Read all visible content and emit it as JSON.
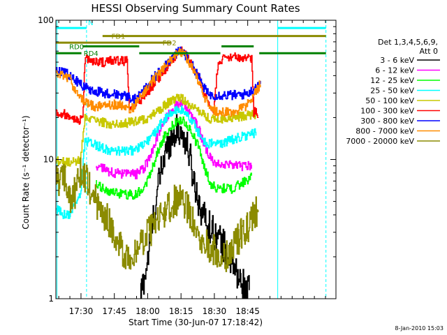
{
  "chart_data": {
    "type": "line",
    "title": "HESSI Observing Summary Count Rates",
    "xlabel": "Start Time (30-Jun-07 17:18:42)",
    "ylabel": "Count Rate (s⁻¹ detector⁻¹)",
    "ylog": true,
    "ylim": [
      1,
      100
    ],
    "xlim_min_since_start": [
      0,
      126
    ],
    "x_ticks": [
      {
        "label": "17:30",
        "t": 11.3
      },
      {
        "label": "17:45",
        "t": 26.3
      },
      {
        "label": "18:00",
        "t": 41.3
      },
      {
        "label": "18:15",
        "t": 56.3
      },
      {
        "label": "18:30",
        "t": 71.3
      },
      {
        "label": "18:45",
        "t": 86.3
      }
    ],
    "y_ticks": [
      {
        "label": "1",
        "v": 1
      },
      {
        "label": "10",
        "v": 10
      },
      {
        "label": "100",
        "v": 100
      }
    ],
    "legend_header": [
      "Det 1,3,4,5,6,9,",
      "Att 0"
    ],
    "legend_position": "right",
    "series": [
      {
        "name": "3 - 6 keV",
        "color": "#000000",
        "points": [
          [
            38,
            1.05
          ],
          [
            41,
            1.8
          ],
          [
            44,
            4
          ],
          [
            47,
            8
          ],
          [
            50,
            12.5
          ],
          [
            53,
            15.5
          ],
          [
            55,
            16.5
          ],
          [
            57,
            15
          ],
          [
            60,
            11
          ],
          [
            62,
            7
          ],
          [
            65,
            4.5
          ],
          [
            68,
            3.5
          ],
          [
            71,
            3
          ],
          [
            74,
            2.6
          ],
          [
            76,
            2.3
          ],
          [
            79,
            1.8
          ],
          [
            82,
            1.4
          ],
          [
            85,
            1.2
          ],
          [
            87,
            1.1
          ]
        ]
      },
      {
        "name": "6 - 12 keV",
        "color": "#ff00ff",
        "points": [
          [
            18,
            9
          ],
          [
            21,
            8.6
          ],
          [
            24,
            8.2
          ],
          [
            27,
            8
          ],
          [
            30,
            7.8
          ],
          [
            33,
            7.8
          ],
          [
            36,
            7.8
          ],
          [
            39,
            8.5
          ],
          [
            42,
            10
          ],
          [
            45,
            14
          ],
          [
            48,
            18.5
          ],
          [
            51,
            21.5
          ],
          [
            54,
            24.5
          ],
          [
            56,
            25.5
          ],
          [
            58,
            24
          ],
          [
            61,
            21
          ],
          [
            64,
            17
          ],
          [
            67,
            12
          ],
          [
            70,
            9.8
          ],
          [
            73,
            9.4
          ],
          [
            76,
            9.2
          ],
          [
            79,
            9
          ],
          [
            82,
            9
          ],
          [
            85,
            9
          ],
          [
            88,
            9
          ]
        ]
      },
      {
        "name": "12 - 25 keV",
        "color": "#00ff00",
        "points": [
          [
            18,
            6.5
          ],
          [
            21,
            6.2
          ],
          [
            24,
            5.9
          ],
          [
            27,
            5.7
          ],
          [
            30,
            5.6
          ],
          [
            33,
            5.6
          ],
          [
            36,
            5.6
          ],
          [
            39,
            6.2
          ],
          [
            42,
            7.5
          ],
          [
            45,
            10.5
          ],
          [
            48,
            14
          ],
          [
            51,
            16.5
          ],
          [
            54,
            18.5
          ],
          [
            56,
            19.5
          ],
          [
            58,
            18.5
          ],
          [
            61,
            15.5
          ],
          [
            64,
            12.5
          ],
          [
            67,
            8.5
          ],
          [
            70,
            6.5
          ],
          [
            73,
            6.2
          ],
          [
            76,
            6.2
          ],
          [
            79,
            6.2
          ],
          [
            82,
            6.5
          ],
          [
            85,
            7
          ],
          [
            88,
            7.5
          ]
        ]
      },
      {
        "name": "25 - 50 keV",
        "color": "#00ffff",
        "points": [
          [
            0,
            4.4
          ],
          [
            3,
            4.1
          ],
          [
            5,
            4
          ],
          [
            6,
            4
          ],
          [
            9,
            5
          ],
          [
            11,
            5.6
          ],
          [
            13,
            13.5
          ],
          [
            16,
            13
          ],
          [
            19,
            12.5
          ],
          [
            22,
            12
          ],
          [
            25,
            11.5
          ],
          [
            29,
            11.5
          ],
          [
            33,
            11.5
          ],
          [
            37,
            12
          ],
          [
            40,
            13
          ],
          [
            43,
            14.5
          ],
          [
            46,
            17
          ],
          [
            49,
            19.5
          ],
          [
            52,
            21.5
          ],
          [
            55,
            23
          ],
          [
            57,
            22.5
          ],
          [
            60,
            20
          ],
          [
            63,
            17
          ],
          [
            65,
            14.5
          ],
          [
            68,
            13
          ],
          [
            71,
            13
          ],
          [
            74,
            13
          ],
          [
            77,
            13.5
          ],
          [
            80,
            14
          ],
          [
            83,
            14.5
          ],
          [
            87,
            15
          ],
          [
            90,
            15.5
          ]
        ]
      },
      {
        "name": "50 - 100 keV",
        "color": "#c8c800",
        "points": [
          [
            0,
            10
          ],
          [
            3,
            9.6
          ],
          [
            6,
            9.4
          ],
          [
            9,
            9.6
          ],
          [
            11,
            10
          ],
          [
            13,
            19.5
          ],
          [
            17,
            19
          ],
          [
            21,
            18.5
          ],
          [
            25,
            18
          ],
          [
            29,
            18
          ],
          [
            33,
            18.5
          ],
          [
            37,
            19
          ],
          [
            40,
            19.5
          ],
          [
            43,
            21
          ],
          [
            46,
            22.5
          ],
          [
            49,
            24.5
          ],
          [
            52,
            26.5
          ],
          [
            55,
            28
          ],
          [
            57,
            27
          ],
          [
            60,
            25
          ],
          [
            63,
            23
          ],
          [
            66,
            21
          ],
          [
            69,
            19.5
          ],
          [
            72,
            19.5
          ],
          [
            76,
            19.8
          ],
          [
            80,
            20
          ],
          [
            84,
            20.5
          ],
          [
            88,
            21
          ],
          [
            90,
            21
          ]
        ]
      },
      {
        "name": "100 - 300 keV",
        "color": "#ff0000",
        "points": [
          [
            0,
            22
          ],
          [
            3,
            21.5
          ],
          [
            5,
            21
          ],
          [
            6,
            21
          ],
          [
            8,
            20
          ],
          [
            10,
            19
          ],
          [
            12,
            20
          ],
          [
            13,
            52
          ],
          [
            17,
            51
          ],
          [
            21,
            50
          ],
          [
            25,
            51
          ],
          [
            29,
            51
          ],
          [
            32,
            50.5
          ],
          [
            33,
            23
          ],
          [
            35,
            24
          ],
          [
            37,
            26
          ],
          [
            40,
            29
          ],
          [
            43,
            33
          ],
          [
            46,
            38
          ],
          [
            49,
            44
          ],
          [
            52,
            51
          ],
          [
            55,
            58
          ],
          [
            56,
            60
          ],
          [
            58,
            57
          ],
          [
            61,
            48
          ],
          [
            64,
            39
          ],
          [
            66,
            33
          ],
          [
            68,
            26
          ],
          [
            70,
            23
          ],
          [
            71,
            22.5
          ],
          [
            73,
            52
          ],
          [
            77,
            53
          ],
          [
            81,
            54
          ],
          [
            85,
            54
          ],
          [
            88,
            54
          ],
          [
            89,
            22
          ],
          [
            91,
            21.5
          ]
        ]
      },
      {
        "name": "300 - 800 keV",
        "color": "#0000ff",
        "points": [
          [
            0,
            44
          ],
          [
            3,
            43
          ],
          [
            6,
            40
          ],
          [
            9,
            37
          ],
          [
            12,
            34
          ],
          [
            15,
            32
          ],
          [
            18,
            31
          ],
          [
            21,
            30
          ],
          [
            24,
            30
          ],
          [
            27,
            29.5
          ],
          [
            30,
            29
          ],
          [
            33,
            28
          ],
          [
            35,
            27
          ],
          [
            37,
            28
          ],
          [
            40,
            32
          ],
          [
            43,
            37
          ],
          [
            46,
            42
          ],
          [
            49,
            48
          ],
          [
            52,
            54
          ],
          [
            55,
            59
          ],
          [
            56,
            61
          ],
          [
            58,
            57
          ],
          [
            61,
            48
          ],
          [
            64,
            40
          ],
          [
            66,
            34
          ],
          [
            68,
            30
          ],
          [
            70,
            29
          ],
          [
            73,
            29
          ],
          [
            76,
            29
          ],
          [
            79,
            29
          ],
          [
            82,
            29
          ],
          [
            85,
            29.5
          ],
          [
            88,
            31
          ],
          [
            90,
            34
          ],
          [
            92,
            36
          ]
        ]
      },
      {
        "name": "800 - 7000 keV",
        "color": "#ff8c00",
        "points": [
          [
            0,
            41
          ],
          [
            3,
            40
          ],
          [
            5,
            39
          ],
          [
            6,
            38
          ],
          [
            9,
            31
          ],
          [
            12,
            27
          ],
          [
            15,
            25
          ],
          [
            18,
            24
          ],
          [
            21,
            24
          ],
          [
            24,
            24.5
          ],
          [
            27,
            25
          ],
          [
            30,
            24.5
          ],
          [
            33,
            23
          ],
          [
            35,
            24
          ],
          [
            37,
            27
          ],
          [
            40,
            31
          ],
          [
            43,
            36
          ],
          [
            46,
            41
          ],
          [
            49,
            47
          ],
          [
            52,
            53
          ],
          [
            55,
            58
          ],
          [
            56,
            60
          ],
          [
            58,
            56
          ],
          [
            61,
            46
          ],
          [
            64,
            37
          ],
          [
            66,
            30
          ],
          [
            68,
            25
          ],
          [
            70,
            23
          ],
          [
            73,
            22
          ],
          [
            76,
            22
          ],
          [
            79,
            22
          ],
          [
            82,
            22.5
          ],
          [
            85,
            24
          ],
          [
            88,
            27
          ],
          [
            90,
            31
          ],
          [
            92,
            35
          ]
        ]
      },
      {
        "name": "7000 - 20000 keV",
        "color": "#8b8b00",
        "points": [
          [
            0,
            7
          ],
          [
            4,
            7.5
          ],
          [
            6,
            5
          ],
          [
            9,
            6
          ],
          [
            11,
            8.5
          ],
          [
            14,
            7
          ],
          [
            18,
            5
          ],
          [
            22,
            4
          ],
          [
            26,
            3
          ],
          [
            30,
            2.2
          ],
          [
            34,
            2
          ],
          [
            38,
            2.5
          ],
          [
            42,
            3
          ],
          [
            45,
            3.5
          ],
          [
            48,
            4
          ],
          [
            51,
            4.6
          ],
          [
            54,
            5.1
          ],
          [
            56,
            5.2
          ],
          [
            58,
            4.8
          ],
          [
            61,
            4
          ],
          [
            64,
            3
          ],
          [
            67,
            2.6
          ],
          [
            70,
            2.3
          ],
          [
            73,
            2
          ],
          [
            76,
            1.9
          ],
          [
            79,
            2.3
          ],
          [
            82,
            2.7
          ],
          [
            85,
            3.1
          ],
          [
            88,
            3.7
          ],
          [
            91,
            4.4
          ]
        ]
      }
    ],
    "flag_bars": [
      {
        "label": "N",
        "color": "#00ffff",
        "value": 88,
        "segments": [
          [
            0,
            13.8
          ],
          [
            99.8,
            121.5
          ]
        ]
      },
      {
        "label": "FD1",
        "color": "#8b8b00",
        "value": 77,
        "segments": [
          [
            21,
            121.5
          ]
        ]
      },
      {
        "label": "FD2",
        "color": "#8b8b00",
        "value": 69,
        "segments": [
          [
            0,
            52
          ]
        ]
      },
      {
        "label": "RD0",
        "color": "#008000",
        "value": 65,
        "segments": [
          [
            12,
            37.5
          ],
          [
            74.5,
            89
          ]
        ]
      },
      {
        "label": "RD4",
        "color": "#008000",
        "value": 58,
        "segments": [
          [
            0,
            11.5
          ],
          [
            37.5,
            74
          ],
          [
            91.5,
            121.5
          ]
        ]
      }
    ],
    "vertical_markers": [
      {
        "color": "#00ffff",
        "t": 0.5,
        "style": "solid"
      },
      {
        "color": "#00ffff",
        "t": 13.8,
        "style": "dashed"
      },
      {
        "color": "#00ffff",
        "t": 99.8,
        "style": "solid"
      },
      {
        "color": "#00ffff",
        "t": 121.5,
        "style": "dashed"
      }
    ]
  },
  "footer_date": "8-Jan-2010 15:03"
}
